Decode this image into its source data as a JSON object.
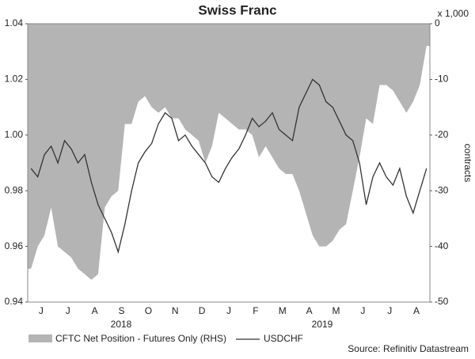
{
  "chart_data": {
    "type": "line",
    "title": "Swiss Franc",
    "y2_unit": "x 1,000",
    "y2_label": "contracts",
    "source": "Source: Refinitiv Datastream",
    "years": [
      "2018",
      "2019"
    ],
    "categories": [
      null,
      "J",
      null,
      null,
      null,
      "J",
      null,
      null,
      null,
      "A",
      null,
      null,
      null,
      "S",
      null,
      null,
      null,
      "O",
      null,
      null,
      null,
      "N",
      null,
      null,
      null,
      "D",
      null,
      null,
      null,
      "J",
      null,
      null,
      null,
      "F",
      null,
      null,
      null,
      "M",
      null,
      null,
      null,
      "A",
      null,
      null,
      null,
      "M",
      null,
      null,
      null,
      "J",
      null,
      null,
      null,
      "J",
      null,
      null,
      null,
      "A",
      null,
      null
    ],
    "series": [
      {
        "name": "CFTC Net Position - Futures Only (RHS)",
        "type": "area",
        "axis": "y2",
        "color": "#b4b4b4",
        "values": [
          -44,
          -40,
          -38,
          -33,
          -40,
          -41,
          -42,
          -44,
          -45,
          -46,
          -45,
          -33,
          -31,
          -30,
          -18,
          -18,
          -14,
          -13,
          -15,
          -16,
          -15,
          -17,
          -17,
          -19,
          -20,
          -21,
          -25,
          -22,
          -16,
          -17,
          -18,
          -19,
          -19,
          -20,
          -24,
          -22,
          -24,
          -26,
          -27,
          -27,
          -30,
          -34,
          -38,
          -40,
          -40,
          -39,
          -37,
          -36,
          -30,
          -24,
          -17,
          -18,
          -11,
          -11,
          -12,
          -14,
          -16,
          -14,
          -11,
          -4
        ]
      },
      {
        "name": "USDCHF",
        "type": "line",
        "color": "#333333",
        "values": [
          0.988,
          0.985,
          0.993,
          0.996,
          0.99,
          0.998,
          0.995,
          0.99,
          0.993,
          0.983,
          0.975,
          0.97,
          0.965,
          0.958,
          0.968,
          0.98,
          0.99,
          0.994,
          0.997,
          1.004,
          1.008,
          1.006,
          0.998,
          1.0,
          0.996,
          0.993,
          0.99,
          0.985,
          0.983,
          0.988,
          0.992,
          0.995,
          1.0,
          1.006,
          1.003,
          1.005,
          1.008,
          1.002,
          1.0,
          0.998,
          1.01,
          1.015,
          1.02,
          1.018,
          1.012,
          1.01,
          1.005,
          1.0,
          0.998,
          0.99,
          0.975,
          0.985,
          0.99,
          0.985,
          0.982,
          0.988,
          0.978,
          0.972,
          0.98,
          0.988
        ]
      }
    ],
    "ylim": [
      0.94,
      1.04
    ],
    "yticks": [
      0.94,
      0.96,
      0.98,
      {
        "value": 1,
        "label": "1.00"
      },
      1.02,
      1.04
    ],
    "y2lim": [
      -50,
      0
    ],
    "y2ticks": [
      -50,
      -40,
      -30,
      -20,
      -10,
      0
    ]
  }
}
